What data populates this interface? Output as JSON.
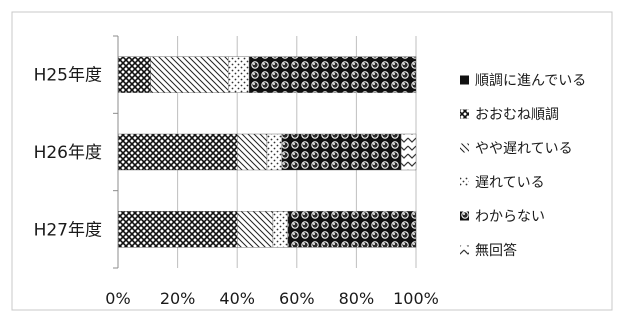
{
  "chart_data": {
    "type": "bar",
    "orientation": "horizontal",
    "stacked": true,
    "percent": true,
    "title": "",
    "xlabel": "",
    "ylabel": "",
    "xlim": [
      0,
      100
    ],
    "x_ticks": [
      "0%",
      "20%",
      "40%",
      "60%",
      "80%",
      "100%"
    ],
    "categories": [
      "H25年度",
      "H26年度",
      "H27年度"
    ],
    "series": [
      {
        "name": "順調に進んでいる",
        "values": [
          0,
          0,
          0
        ]
      },
      {
        "name": "おおむね順調",
        "values": [
          11,
          40,
          40
        ]
      },
      {
        "name": "やや遅れている",
        "values": [
          26,
          10,
          12
        ]
      },
      {
        "name": "遅れている",
        "values": [
          7,
          5,
          5
        ]
      },
      {
        "name": "わからない",
        "values": [
          56,
          40,
          43
        ]
      },
      {
        "name": "無回答",
        "values": [
          0,
          5,
          0
        ]
      }
    ],
    "legend_position": "right",
    "grid": true
  }
}
